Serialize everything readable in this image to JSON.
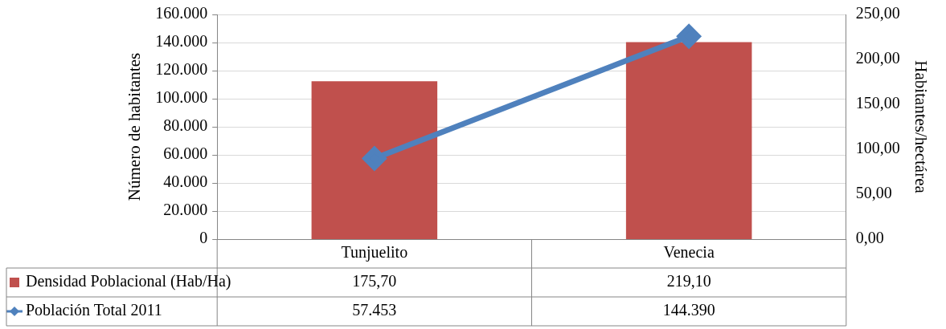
{
  "chart_data": {
    "type": "bar",
    "categories": [
      "Tunjuelito",
      "Venecia"
    ],
    "series": [
      {
        "name": "Densidad Poblacional (Hab/Ha)",
        "axis": "y2",
        "color": "#c0504d",
        "values": [
          175.7,
          219.1
        ],
        "value_labels": [
          "175,70",
          "219,10"
        ]
      },
      {
        "name": "Población Total 2011",
        "type": "line",
        "color": "#4f81bd",
        "marker": "diamond",
        "values": [
          57453,
          144390
        ],
        "value_labels": [
          "57.453",
          "144.390"
        ]
      }
    ],
    "ylabel": "Número de habitantes",
    "y2label": "Habitantes/hectárea",
    "ylim": [
      0,
      160000
    ],
    "yticks": [
      {
        "value": 0,
        "label": "0"
      },
      {
        "value": 20000,
        "label": "20.000"
      },
      {
        "value": 40000,
        "label": "40.000"
      },
      {
        "value": 60000,
        "label": "60.000"
      },
      {
        "value": 80000,
        "label": "80.000"
      },
      {
        "value": 100000,
        "label": "100.000"
      },
      {
        "value": 120000,
        "label": "120.000"
      },
      {
        "value": 140000,
        "label": "140.000"
      },
      {
        "value": 160000,
        "label": "160.000"
      }
    ],
    "y2lim": [
      0,
      250
    ],
    "y2ticks": [
      {
        "value": 0,
        "label": "0,00"
      },
      {
        "value": 50,
        "label": "50,00"
      },
      {
        "value": 100,
        "label": "100,00"
      },
      {
        "value": 150,
        "label": "150,00"
      },
      {
        "value": 200,
        "label": "200,00"
      },
      {
        "value": 250,
        "label": "250,00"
      }
    ],
    "grid": "y",
    "legend": "bottom left"
  }
}
